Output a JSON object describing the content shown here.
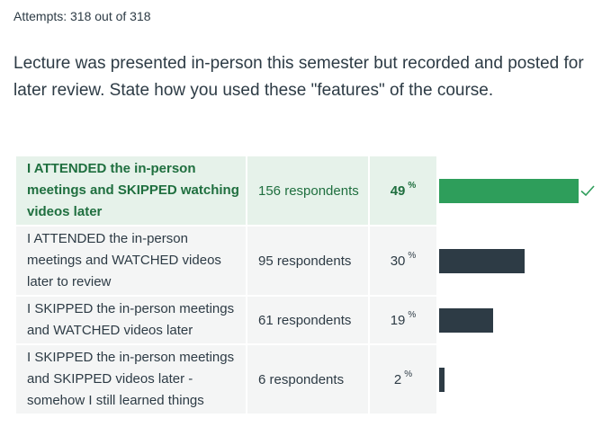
{
  "attempts_text": "Attempts: 318 out of 318",
  "question_text": "Lecture was presented in-person this semester but recorded and posted for later review. State how you used these \"features\" of the course.",
  "percent_symbol": "%",
  "colors": {
    "correct_bar": "#2e9e5b",
    "bar": "#2d3b45",
    "correct_bg": "#e6f2ea",
    "row_bg": "#f4f5f5"
  },
  "answers": [
    {
      "label": "I ATTENDED the in-person meetings and SKIPPED watching videos later",
      "respondents": "156 respondents",
      "percent": "49",
      "value": 49,
      "correct": true
    },
    {
      "label": "I ATTENDED the in-person meetings and WATCHED videos later to review",
      "respondents": "95 respondents",
      "percent": "30",
      "value": 30,
      "correct": false
    },
    {
      "label": "I SKIPPED the in-person meetings and WATCHED videos later",
      "respondents": "61 respondents",
      "percent": "19",
      "value": 19,
      "correct": false
    },
    {
      "label": "I SKIPPED the in-person meetings and SKIPPED videos later - somehow I still learned things",
      "respondents": "6 respondents",
      "percent": "2",
      "value": 2,
      "correct": false
    }
  ]
}
